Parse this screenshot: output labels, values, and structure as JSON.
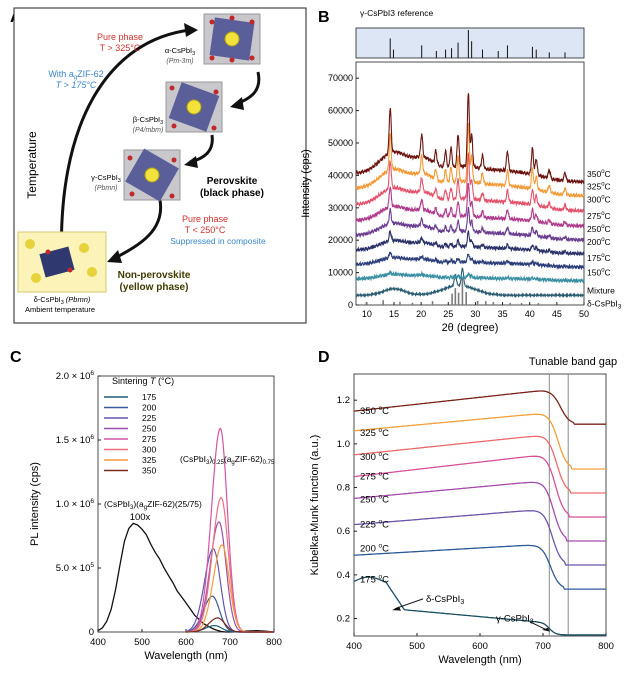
{
  "panels": {
    "a": {
      "label": "A"
    },
    "b": {
      "label": "B"
    },
    "c": {
      "label": "C"
    },
    "d": {
      "label": "D"
    }
  },
  "panel_a": {
    "y_axis_label": "Temperature",
    "alpha": {
      "name": "α-CsPbI",
      "sub": "3",
      "group": "(Pm-3m)"
    },
    "beta": {
      "name": "β-CsPbI",
      "sub": "3",
      "group": "(P4/mbm)"
    },
    "gamma": {
      "name": "γ-CsPbI",
      "sub": "3",
      "group": "(Pbmn)"
    },
    "delta": {
      "name": "δ-CsPbI",
      "sub": "3",
      "group": "(Pbmn)",
      "note": "Ambient temperature"
    },
    "pure_phase_high": {
      "line1": "Pure phase",
      "line2": "T > 325°C"
    },
    "with_zif": {
      "line1": "With a",
      "line1_sub": "g",
      "line1_end": "ZIF-62",
      "line2": "T > 175°C"
    },
    "perovskite": {
      "line1": "Perovskite",
      "line2": "(black phase)"
    },
    "pure_phase_low": {
      "line1": "Pure phase",
      "line2": "T < 250°C"
    },
    "suppressed": "Suppressed in composite",
    "non_perovskite": {
      "line1": "Non-perovskite",
      "line2": "(yellow phase)"
    },
    "colors": {
      "red": "#d0312d",
      "blue": "#3a86c8",
      "yellow_box": "#fbf3b8",
      "yellow_text": "#3d3a00"
    }
  },
  "chart_data": [
    {
      "panel": "B",
      "type": "line",
      "reference_label": "γ-CsPbI3 reference",
      "xlabel": "2θ (degree)",
      "ylabel": "Intensity (cps)",
      "xlim": [
        8,
        50
      ],
      "ylim": [
        0,
        75000
      ],
      "xticks": [
        10,
        15,
        20,
        25,
        30,
        35,
        40,
        45,
        50
      ],
      "yticks": [
        0,
        10000,
        20000,
        30000,
        40000,
        50000,
        60000,
        70000
      ],
      "reference_peaks": [
        {
          "x": 14.3,
          "h": 0.7
        },
        {
          "x": 14.9,
          "h": 0.3
        },
        {
          "x": 20.1,
          "h": 0.45
        },
        {
          "x": 22.8,
          "h": 0.25
        },
        {
          "x": 24.5,
          "h": 0.3
        },
        {
          "x": 25.6,
          "h": 0.35
        },
        {
          "x": 26.8,
          "h": 0.55
        },
        {
          "x": 28.7,
          "h": 1.0
        },
        {
          "x": 29.3,
          "h": 0.6
        },
        {
          "x": 31.3,
          "h": 0.3
        },
        {
          "x": 34.2,
          "h": 0.25
        },
        {
          "x": 35.9,
          "h": 0.45
        },
        {
          "x": 40.5,
          "h": 0.4
        },
        {
          "x": 41.2,
          "h": 0.3
        },
        {
          "x": 43.6,
          "h": 0.2
        },
        {
          "x": 46.5,
          "h": 0.2
        }
      ],
      "delta_peaks": [
        {
          "x": 9.9,
          "h": 800
        },
        {
          "x": 13.0,
          "h": 1500
        },
        {
          "x": 16.1,
          "h": 1000
        },
        {
          "x": 18.4,
          "h": 700
        },
        {
          "x": 22.1,
          "h": 1200
        },
        {
          "x": 25.7,
          "h": 3500
        },
        {
          "x": 26.3,
          "h": 5200
        },
        {
          "x": 26.9,
          "h": 3800
        },
        {
          "x": 27.6,
          "h": 8200
        },
        {
          "x": 28.3,
          "h": 4000
        },
        {
          "x": 30.4,
          "h": 1300
        },
        {
          "x": 31.9,
          "h": 1200
        },
        {
          "x": 33.3,
          "h": 900
        },
        {
          "x": 36.4,
          "h": 700
        },
        {
          "x": 38.5,
          "h": 600
        },
        {
          "x": 41.6,
          "h": 600
        }
      ],
      "series": [
        {
          "name": "δ-CsPbI3",
          "offset": 0,
          "color": "#7a7a7a"
        },
        {
          "name": "Mixture",
          "offset": 3000,
          "color": "#2d5d73"
        },
        {
          "name": "150°C",
          "offset": 8000,
          "color": "#3b8fa3"
        },
        {
          "name": "175°C",
          "offset": 12500,
          "color": "#2c3e7a"
        },
        {
          "name": "200°C",
          "offset": 17000,
          "color": "#2b3268"
        },
        {
          "name": "250°C",
          "offset": 21500,
          "color": "#6a3d8f"
        },
        {
          "name": "275°C",
          "offset": 26000,
          "color": "#b03a8c"
        },
        {
          "name": "300°C",
          "offset": 31000,
          "color": "#e3536b"
        },
        {
          "name": "325°C",
          "offset": 36000,
          "color": "#f29a36"
        },
        {
          "name": "350°C",
          "offset": 40500,
          "color": "#6b1410"
        }
      ]
    },
    {
      "panel": "C",
      "type": "line",
      "xlabel": "Wavelength (nm)",
      "ylabel": "PL intensity (cps)",
      "xlim": [
        400,
        800
      ],
      "ylim": [
        0,
        2000000
      ],
      "xticks": [
        400,
        500,
        600,
        700,
        800
      ],
      "yticks": [
        0,
        500000,
        1000000,
        1500000,
        2000000
      ],
      "ytick_labels": [
        "0",
        "5.0 × 10",
        "1.0 × 10",
        "1.5 × 10",
        "2.0 × 10"
      ],
      "ytick_exp": "6",
      "ytick_exp5": "5",
      "legend_title": "Sintering T (°C)",
      "annotation_composite": "(CsPbI3)0.25(agZIF-62)0.75",
      "annotation_reference": "(CsPbI3)(agZIF-62)(25/75)",
      "annotation_scale": "100x",
      "reference_curve": {
        "x": [
          400,
          410,
          420,
          430,
          440,
          450,
          460,
          470,
          480,
          490,
          500,
          510,
          520,
          530,
          540,
          550,
          560,
          570,
          580,
          590,
          600,
          610,
          620,
          630,
          640,
          650,
          660,
          670,
          680,
          690,
          700,
          720,
          740,
          760,
          780,
          800
        ],
        "y": [
          20000,
          40000,
          90000,
          180000,
          330000,
          520000,
          700000,
          800000,
          840000,
          830000,
          800000,
          760000,
          690000,
          630000,
          580000,
          510000,
          450000,
          390000,
          320000,
          270000,
          220000,
          170000,
          120000,
          90000,
          60000,
          45000,
          30000,
          20000,
          12000,
          8000,
          5000,
          3000,
          2000,
          1500,
          1200,
          1000
        ]
      },
      "series": [
        {
          "name": "175",
          "peak_x": 665,
          "peak_y": 50000,
          "color": "#1f5f7a"
        },
        {
          "name": "200",
          "peak_x": 660,
          "peak_y": 280000,
          "color": "#3a5a9a"
        },
        {
          "name": "225",
          "peak_x": 662,
          "peak_y": 650000,
          "color": "#6657b0"
        },
        {
          "name": "250",
          "peak_x": 675,
          "peak_y": 860000,
          "color": "#9b4fb0"
        },
        {
          "name": "275",
          "peak_x": 678,
          "peak_y": 1590000,
          "color": "#d255a6"
        },
        {
          "name": "300",
          "peak_x": 680,
          "peak_y": 1050000,
          "color": "#ef6f7d"
        },
        {
          "name": "325",
          "peak_x": 682,
          "peak_y": 680000,
          "color": "#f59c3b"
        },
        {
          "name": "350",
          "peak_x": 672,
          "peak_y": 110000,
          "color": "#7a2a1a"
        }
      ]
    },
    {
      "panel": "D",
      "type": "line",
      "title": "Tunable band gap",
      "xlabel": "Wavelength (nm)",
      "ylabel": "Kubelka-Munk function (a.u.)",
      "xlim": [
        400,
        800
      ],
      "ylim": [
        0.12,
        1.32
      ],
      "xticks": [
        400,
        500,
        600,
        700,
        800
      ],
      "yticks": [
        0.2,
        0.4,
        0.6,
        0.8,
        1.0,
        1.2
      ],
      "vlines": [
        710,
        740
      ],
      "annotation_delta": "δ-CsPbI3",
      "annotation_gamma": "γ-CsPbI3",
      "series": [
        {
          "name": "175 °C",
          "color": "#1a4f62",
          "low": 0.125,
          "edge": 710
        },
        {
          "name": "200 °C",
          "color": "#2f5a9a",
          "start": 0.49,
          "top": 0.54,
          "low": 0.335,
          "edge": 712
        },
        {
          "name": "225 °C",
          "color": "#6d55ab",
          "start": 0.63,
          "top": 0.7,
          "low": 0.445,
          "edge": 715
        },
        {
          "name": "250 °C",
          "color": "#a64cae",
          "start": 0.75,
          "top": 0.83,
          "low": 0.555,
          "edge": 717
        },
        {
          "name": "275 °C",
          "color": "#d8509a",
          "start": 0.85,
          "top": 0.95,
          "low": 0.665,
          "edge": 720
        },
        {
          "name": "300 °C",
          "color": "#ee6a6a",
          "start": 0.95,
          "top": 1.04,
          "low": 0.775,
          "edge": 722
        },
        {
          "name": "325 °C",
          "color": "#f5a03a",
          "start": 1.06,
          "top": 1.14,
          "low": 0.885,
          "edge": 724
        },
        {
          "name": "350 °C",
          "color": "#7b2317",
          "start": 1.15,
          "top": 1.245,
          "low": 1.09,
          "edge": 728
        }
      ]
    }
  ]
}
